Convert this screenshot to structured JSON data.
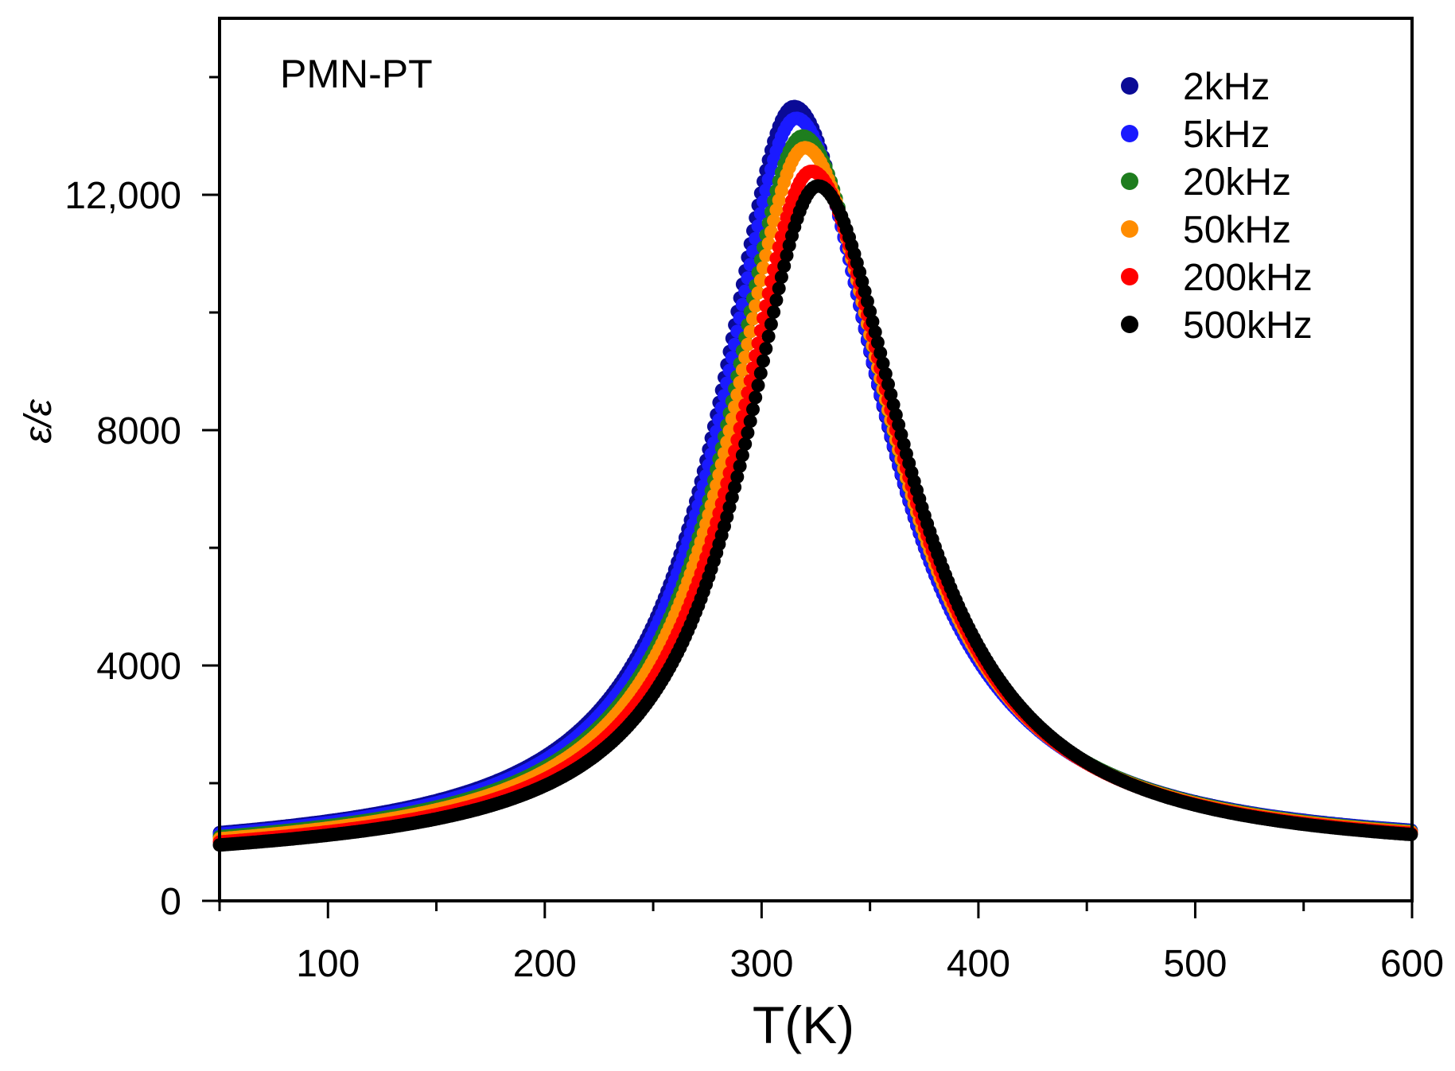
{
  "chart_data": {
    "type": "scatter",
    "title": "",
    "annotation": "PMN-PT",
    "xlabel": "T(K)",
    "ylabel": "ε/ε",
    "xlim": [
      50,
      600
    ],
    "ylim": [
      0,
      15000
    ],
    "xticks": [
      100,
      200,
      300,
      400,
      500,
      600
    ],
    "xtick_labels": [
      "100",
      "200",
      "300",
      "400",
      "500",
      "600"
    ],
    "yticks": [
      0,
      4000,
      8000,
      12000
    ],
    "ytick_labels": [
      "0",
      "4000",
      "8000",
      "12,000"
    ],
    "grid": false,
    "legend_position": "top-right",
    "series": [
      {
        "name": "2kHz",
        "color": "#0a0a96",
        "peak_T": 315,
        "peak_value": 13500,
        "low_T_value": 850,
        "high_T_value": 820
      },
      {
        "name": "5kHz",
        "color": "#1a1aff",
        "peak_T": 316,
        "peak_value": 13300,
        "low_T_value": 830,
        "high_T_value": 815
      },
      {
        "name": "20kHz",
        "color": "#1e7d1e",
        "peak_T": 319,
        "peak_value": 13000,
        "low_T_value": 800,
        "high_T_value": 805
      },
      {
        "name": "50kHz",
        "color": "#ff8c00",
        "peak_T": 320,
        "peak_value": 12800,
        "low_T_value": 770,
        "high_T_value": 795
      },
      {
        "name": "200kHz",
        "color": "#ff0000",
        "peak_T": 323,
        "peak_value": 12400,
        "low_T_value": 730,
        "high_T_value": 780
      },
      {
        "name": "500kHz",
        "color": "#000000",
        "peak_T": 326,
        "peak_value": 12150,
        "low_T_value": 690,
        "high_T_value": 760
      }
    ]
  }
}
